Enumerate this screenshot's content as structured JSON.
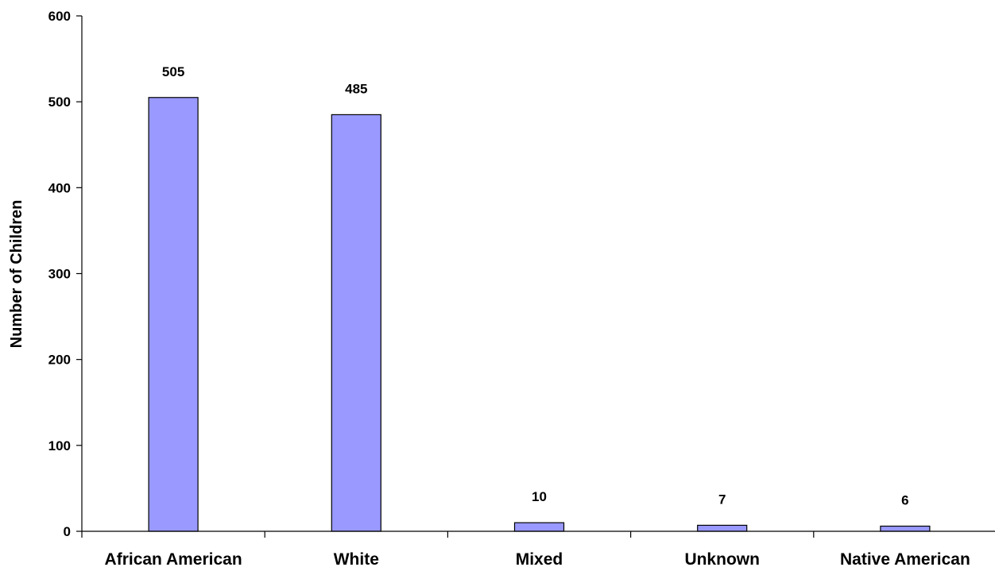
{
  "chart_data": {
    "type": "bar",
    "title": "",
    "xlabel": "",
    "ylabel": "Number of Children",
    "categories": [
      "African American",
      "White",
      "Mixed",
      "Unknown",
      "Native American"
    ],
    "values": [
      505,
      485,
      10,
      7,
      6
    ],
    "ylim": [
      0,
      600
    ],
    "yticks": [
      0,
      100,
      200,
      300,
      400,
      500,
      600
    ],
    "data_labels": [
      "505",
      "485",
      "10",
      "7",
      "6"
    ],
    "grid": false,
    "legend": "none",
    "bar_color": "#9999ff",
    "bar_edge_color": "#000000"
  }
}
